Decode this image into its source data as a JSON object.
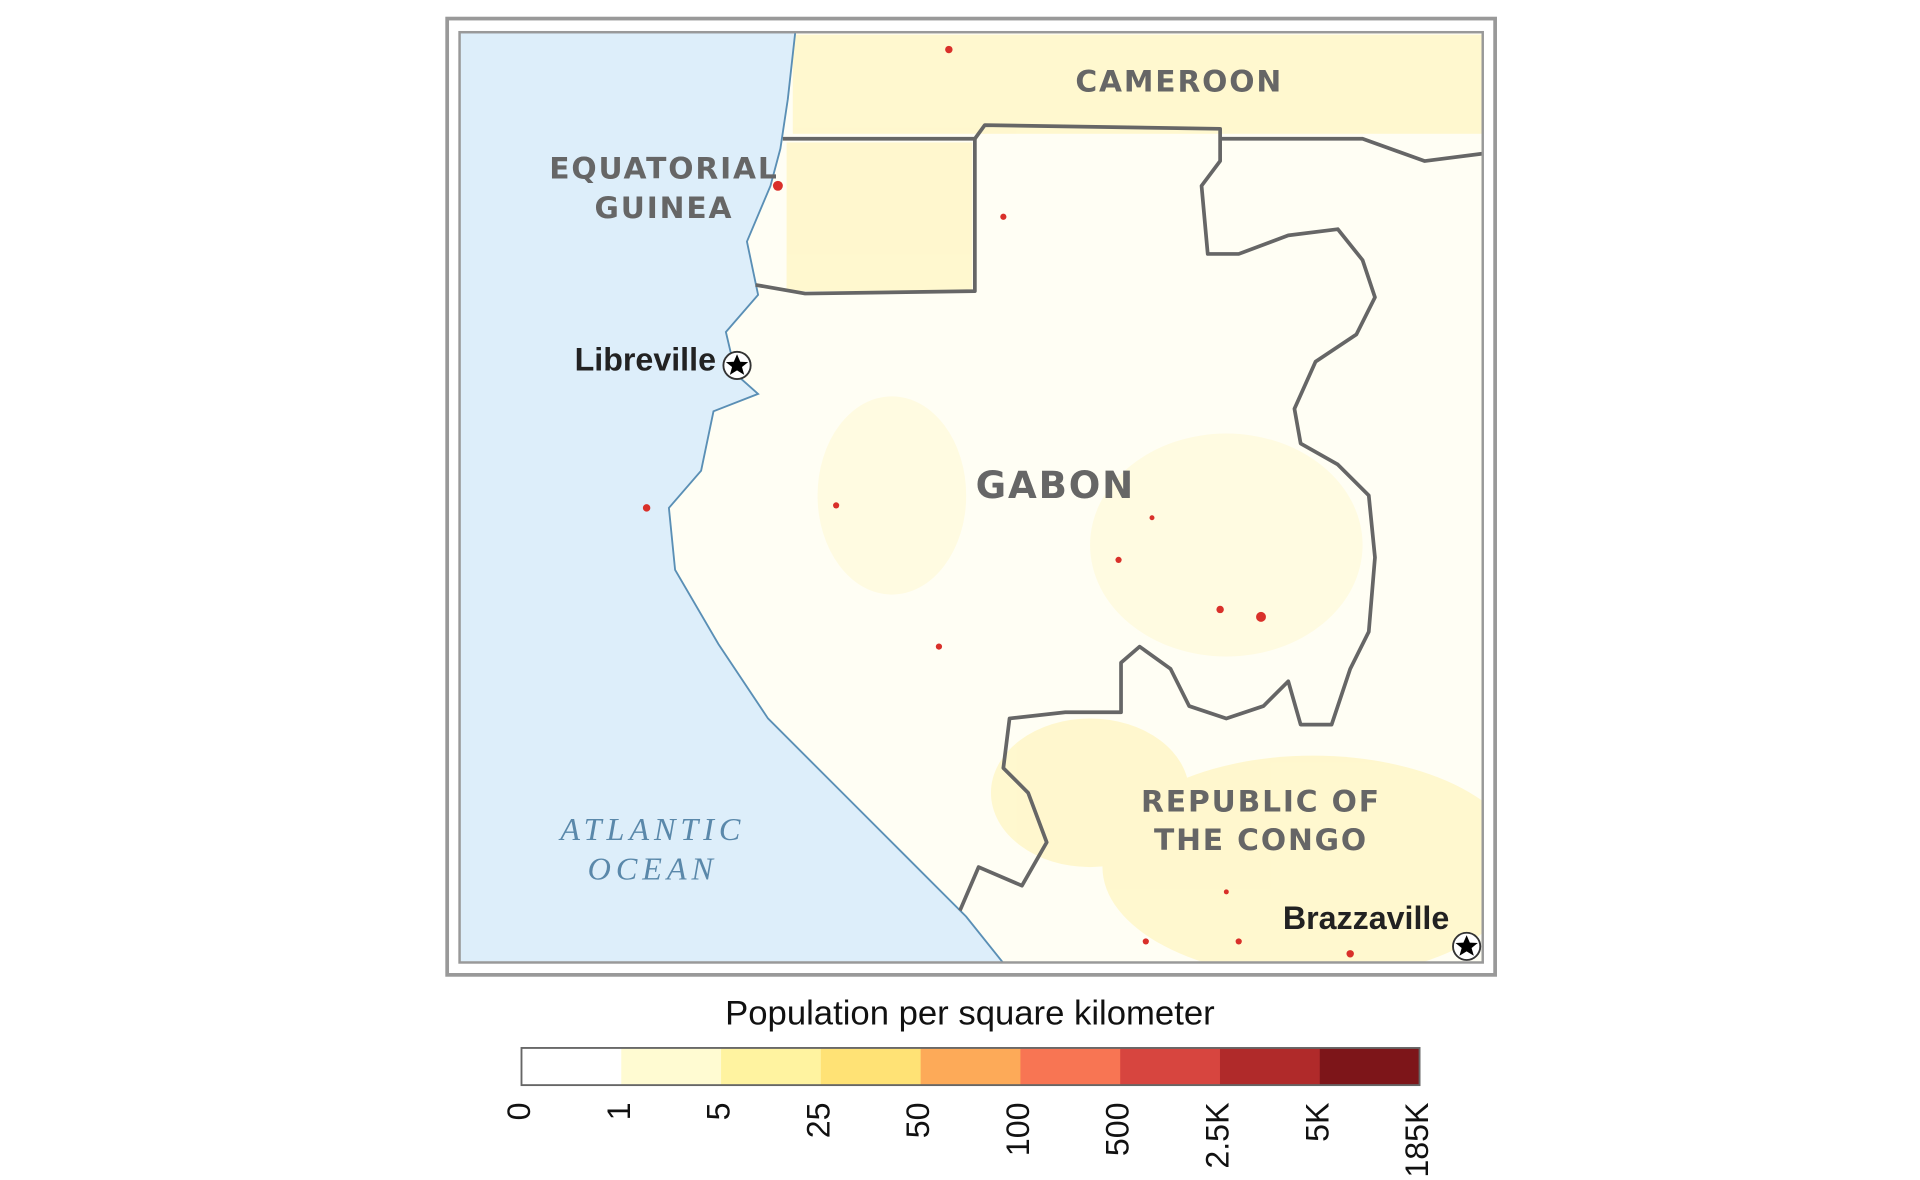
{
  "map": {
    "labels": {
      "cameroon": "CAMEROON",
      "equatorial_guinea": [
        "EQUATORIAL",
        "GUINEA"
      ],
      "gabon": "GABON",
      "congo": [
        "REPUBLIC OF",
        "THE CONGO"
      ],
      "ocean": [
        "ATLANTIC",
        "OCEAN"
      ]
    },
    "cities": [
      "Libreville",
      "Brazzaville"
    ]
  },
  "legend": {
    "title": "Population per square kilometer",
    "colors": [
      "#ffffff",
      "#fffbd2",
      "#fff3a0",
      "#ffe275",
      "#fdaa58",
      "#f87553",
      "#d7453f",
      "#b02a2a",
      "#7d1519"
    ],
    "ticks": [
      "0",
      "1",
      "5",
      "25",
      "50",
      "100",
      "500",
      "2.5K",
      "5K",
      "185K"
    ]
  }
}
